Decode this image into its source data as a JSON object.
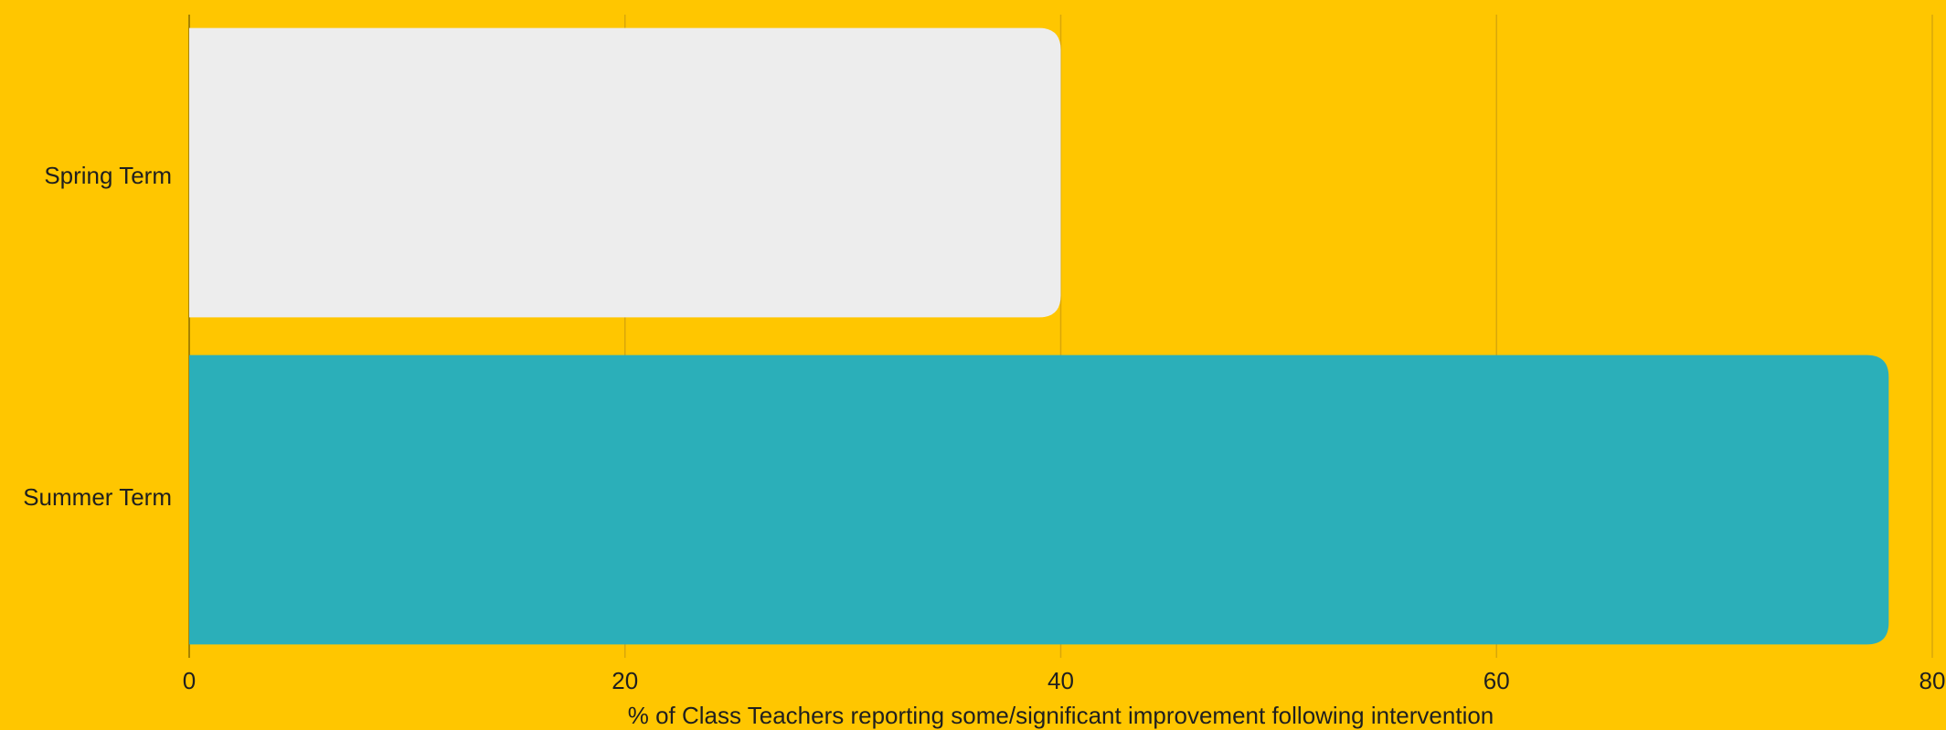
{
  "chart_data": {
    "type": "bar",
    "orientation": "horizontal",
    "categories": [
      "Spring Term",
      "Summer Term"
    ],
    "values": [
      40,
      78
    ],
    "colors": [
      "#EDEDED",
      "#2BAFB9"
    ],
    "background": "#FFC600",
    "xlabel": "% of Class Teachers reporting some/significant improvement following intervention",
    "ylabel": "",
    "xlim": [
      0,
      80
    ],
    "xticks": [
      0,
      20,
      40,
      60,
      80
    ],
    "grid": true,
    "legend": "none"
  }
}
